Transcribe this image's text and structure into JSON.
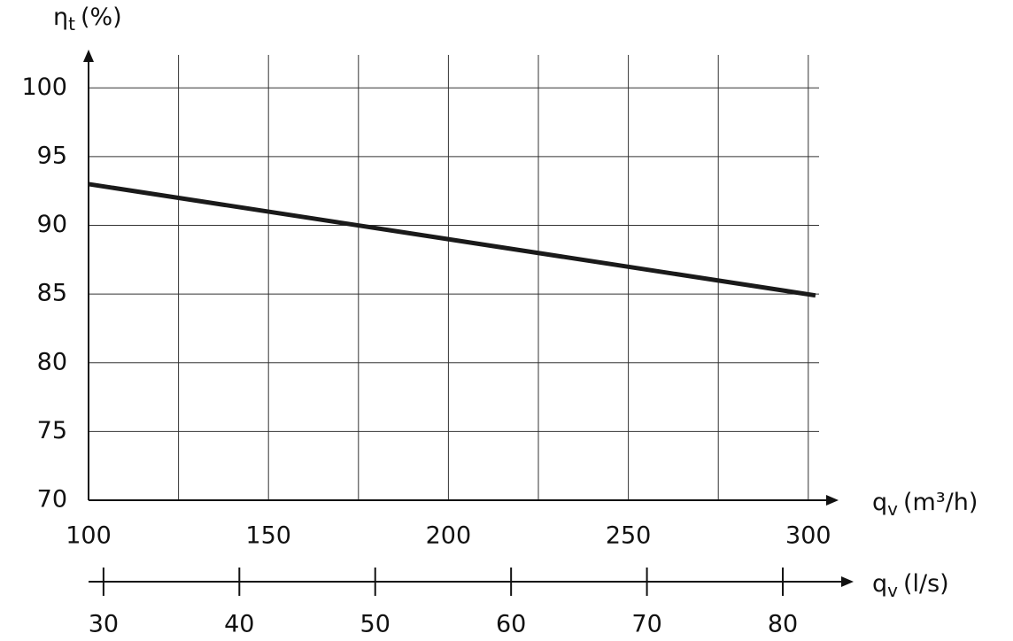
{
  "chart_data": {
    "type": "line",
    "y_label": {
      "symbol": "η",
      "subscript": "t",
      "unit": "(%)"
    },
    "x_label": {
      "symbol": "q",
      "subscript": "v",
      "unit": "(m³/h)"
    },
    "x2_label": {
      "symbol": "q",
      "subscript": "v",
      "unit": "(l/s)"
    },
    "x": [
      100,
      302
    ],
    "values": [
      93,
      84.9
    ],
    "color": "#1a1a1a",
    "xlim": [
      100,
      303
    ],
    "xticks": [
      100,
      150,
      200,
      250,
      300
    ],
    "xminor": [
      125,
      175,
      225,
      275
    ],
    "x2lim": [
      28.9,
      84.3
    ],
    "x2ticks": [
      30,
      40,
      50,
      60,
      70,
      80
    ],
    "ylim": [
      70,
      102.4
    ],
    "yticks": [
      70,
      75,
      80,
      85,
      90,
      95,
      100
    ],
    "grid": true
  }
}
